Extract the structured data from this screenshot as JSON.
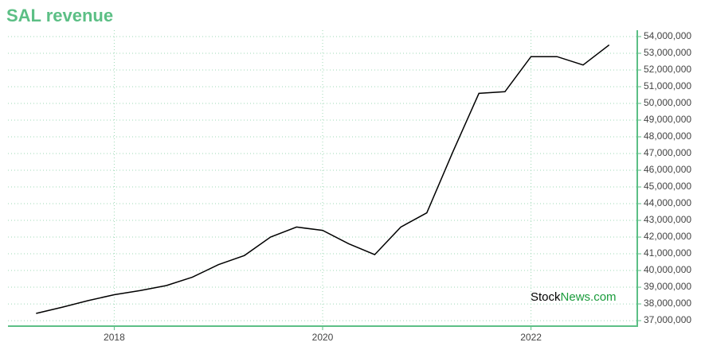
{
  "chart_data": {
    "type": "line",
    "title": "SAL revenue",
    "x": [
      2017.25,
      2017.5,
      2017.75,
      2018,
      2018.25,
      2018.5,
      2018.75,
      2019,
      2019.25,
      2019.5,
      2019.75,
      2020,
      2020.25,
      2020.5,
      2020.75,
      2021,
      2021.25,
      2021.5,
      2021.75,
      2022,
      2022.25,
      2022.5,
      2022.75
    ],
    "values": [
      37430000,
      37800000,
      38200000,
      38550000,
      38800000,
      39100000,
      39600000,
      40350000,
      40900000,
      42000000,
      42600000,
      42400000,
      41600000,
      40950000,
      42600000,
      43450000,
      47100000,
      50600000,
      50700000,
      52800000,
      52800000,
      52300000,
      53500000
    ],
    "color": "#000000",
    "xlim": [
      2016.98,
      2023.02
    ],
    "xticks": [
      2018,
      2020,
      2022
    ],
    "ylim": [
      36670000,
      54380000
    ],
    "yticks": [
      {
        "value": 37000000,
        "label": "37,000,000"
      },
      {
        "value": 38000000,
        "label": "38,000,000"
      },
      {
        "value": 39000000,
        "label": "39,000,000"
      },
      {
        "value": 40000000,
        "label": "40,000,000"
      },
      {
        "value": 41000000,
        "label": "41,000,000"
      },
      {
        "value": 42000000,
        "label": "42,000,000"
      },
      {
        "value": 43000000,
        "label": "43,000,000"
      },
      {
        "value": 44000000,
        "label": "44,000,000"
      },
      {
        "value": 45000000,
        "label": "45,000,000"
      },
      {
        "value": 46000000,
        "label": "46,000,000"
      },
      {
        "value": 47000000,
        "label": "47,000,000"
      },
      {
        "value": 48000000,
        "label": "48,000,000"
      },
      {
        "value": 49000000,
        "label": "49,000,000"
      },
      {
        "value": 50000000,
        "label": "50,000,000"
      },
      {
        "value": 51000000,
        "label": "51,000,000"
      },
      {
        "value": 52000000,
        "label": "52,000,000"
      },
      {
        "value": 53000000,
        "label": "53,000,000"
      },
      {
        "value": 54000000,
        "label": "54,000,000"
      }
    ],
    "grid": true,
    "axis_color": "#5cbf85",
    "watermark": {
      "brand": "Stock",
      "domain": "News.com"
    }
  }
}
